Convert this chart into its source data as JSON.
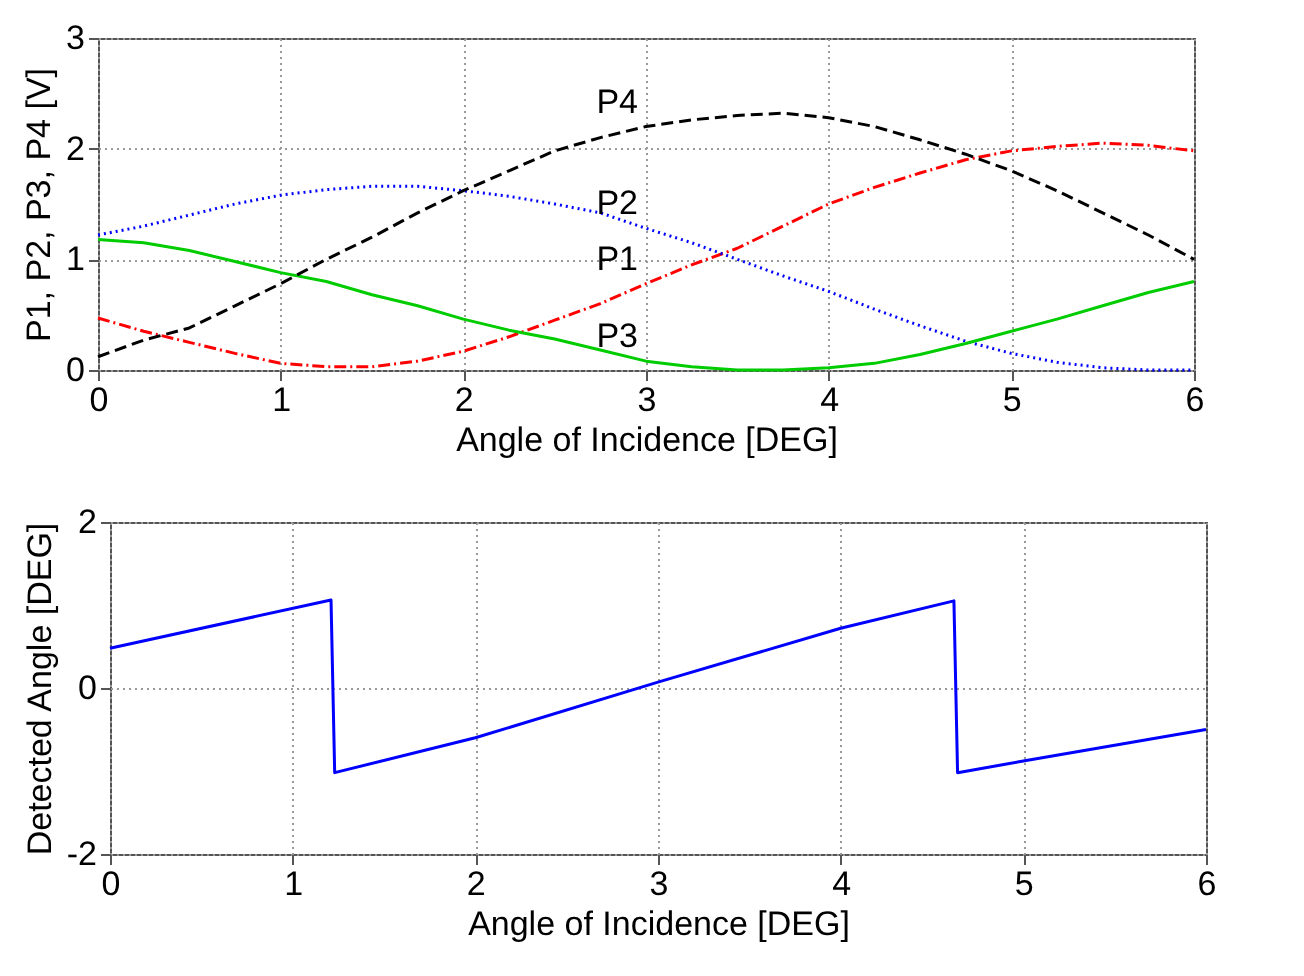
{
  "chart_data": [
    {
      "type": "line",
      "xlabel": "Angle of Incidence [DEG]",
      "ylabel": "P1, P2, P3, P4 [V]",
      "x": [
        0,
        0.25,
        0.5,
        0.75,
        1,
        1.25,
        1.5,
        1.75,
        2,
        2.25,
        2.5,
        2.75,
        3,
        3.25,
        3.5,
        3.75,
        4,
        4.25,
        4.5,
        4.75,
        5,
        5.25,
        5.5,
        5.75,
        6
      ],
      "xlim": [
        0,
        6
      ],
      "xticks": [
        0,
        1,
        2,
        3,
        4,
        5,
        6
      ],
      "ylim": [
        0,
        3
      ],
      "yticks": [
        0,
        1,
        2,
        3
      ],
      "grid": true,
      "legend": false,
      "marker": "none",
      "series": [
        {
          "name": "P1",
          "color": "#ff0000",
          "line_style": "dashdot",
          "values": [
            0.47,
            0.35,
            0.25,
            0.15,
            0.06,
            0.03,
            0.03,
            0.08,
            0.17,
            0.3,
            0.45,
            0.6,
            0.78,
            0.95,
            1.1,
            1.3,
            1.5,
            1.65,
            1.78,
            1.9,
            1.98,
            2.02,
            2.05,
            2.03,
            1.98
          ]
        },
        {
          "name": "P2",
          "color": "#0000ff",
          "line_style": "dotted",
          "values": [
            1.22,
            1.3,
            1.4,
            1.5,
            1.58,
            1.63,
            1.66,
            1.66,
            1.62,
            1.57,
            1.5,
            1.42,
            1.28,
            1.15,
            1.0,
            0.85,
            0.71,
            0.55,
            0.4,
            0.26,
            0.15,
            0.07,
            0.02,
            0,
            0
          ]
        },
        {
          "name": "P3",
          "color": "#00cc00",
          "line_style": "solid",
          "values": [
            1.18,
            1.15,
            1.08,
            0.98,
            0.88,
            0.8,
            0.68,
            0.58,
            0.46,
            0.36,
            0.28,
            0.18,
            0.08,
            0.03,
            0,
            0,
            0.02,
            0.06,
            0.14,
            0.24,
            0.35,
            0.46,
            0.58,
            0.7,
            0.8
          ]
        },
        {
          "name": "P4",
          "color": "#000000",
          "line_style": "dashed",
          "values": [
            0.12,
            0.27,
            0.38,
            0.58,
            0.78,
            1.0,
            1.2,
            1.42,
            1.62,
            1.8,
            1.98,
            2.1,
            2.2,
            2.26,
            2.3,
            2.32,
            2.28,
            2.2,
            2.08,
            1.95,
            1.8,
            1.62,
            1.42,
            1.22,
            1.0
          ]
        }
      ]
    },
    {
      "type": "line",
      "xlabel": "Angle of Incidence [DEG]",
      "ylabel": "Detected Angle [DEG]",
      "x": [
        0,
        1.21,
        1.23,
        2,
        3,
        4,
        4.62,
        4.64,
        5,
        6
      ],
      "xlim": [
        0,
        6
      ],
      "xticks": [
        0,
        1,
        2,
        3,
        4,
        5,
        6
      ],
      "ylim": [
        -2,
        2
      ],
      "yticks": [
        -2,
        0,
        2
      ],
      "grid": true,
      "legend": false,
      "marker": "none",
      "line_style": "solid",
      "series": [
        {
          "color": "#0000ff",
          "values": [
            0.48,
            1.06,
            -1.02,
            -0.6,
            0.07,
            0.72,
            1.05,
            -1.02,
            -0.88,
            -0.5
          ]
        }
      ]
    }
  ]
}
